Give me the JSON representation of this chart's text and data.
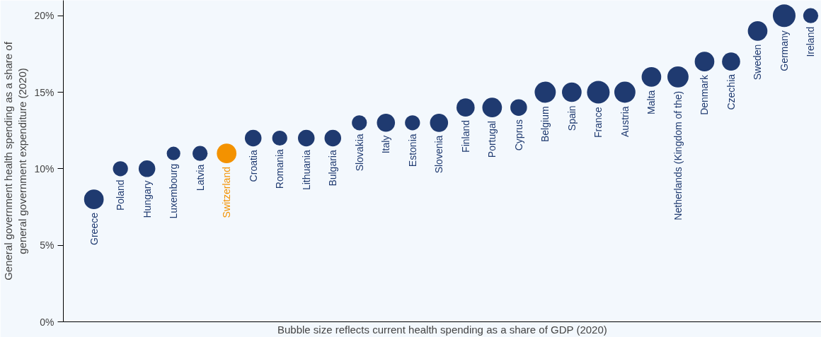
{
  "chart_data": {
    "type": "bubble",
    "xlabel": "Bubble size reflects current health spending as a share of GDP (2020)",
    "ylabel": "General government health spending as a share of\ngeneral government expenditure (2020)",
    "categories": [
      "Greece",
      "Poland",
      "Hungary",
      "Luxembourg",
      "Latvia",
      "Switzerland",
      "Croatia",
      "Romania",
      "Lithuania",
      "Bulgaria",
      "Slovakia",
      "Italy",
      "Estonia",
      "Slovenia",
      "Finland",
      "Portugal",
      "Cyprus",
      "Belgium",
      "Spain",
      "France",
      "Austria",
      "Malta",
      "Netherlands (Kingdom of the)",
      "Denmark",
      "Czechia",
      "Sweden",
      "Germany",
      "Ireland"
    ],
    "values": [
      8,
      10,
      10,
      11,
      11,
      11,
      12,
      12,
      12,
      12,
      13,
      13,
      13,
      13,
      14,
      14,
      14,
      15,
      15,
      15,
      15,
      16,
      16,
      17,
      17,
      19,
      20,
      20
    ],
    "sizes": [
      0.75,
      0.44,
      0.54,
      0.36,
      0.44,
      0.75,
      0.54,
      0.44,
      0.54,
      0.54,
      0.44,
      0.64,
      0.44,
      0.64,
      0.64,
      0.75,
      0.54,
      0.87,
      0.75,
      1,
      0.87,
      0.75,
      0.87,
      0.75,
      0.64,
      0.75,
      1,
      0.44
    ],
    "colors": [
      "#1f3a70",
      "#1f3a70",
      "#1f3a70",
      "#1f3a70",
      "#1f3a70",
      "#f39200",
      "#1f3a70",
      "#1f3a70",
      "#1f3a70",
      "#1f3a70",
      "#1f3a70",
      "#1f3a70",
      "#1f3a70",
      "#1f3a70",
      "#1f3a70",
      "#1f3a70",
      "#1f3a70",
      "#1f3a70",
      "#1f3a70",
      "#1f3a70",
      "#1f3a70",
      "#1f3a70",
      "#1f3a70",
      "#1f3a70",
      "#1f3a70",
      "#1f3a70",
      "#1f3a70",
      "#1f3a70"
    ],
    "ylim": [
      0,
      21
    ],
    "yticks": [
      {
        "value": 0,
        "label": "0%"
      },
      {
        "value": 5,
        "label": "5%"
      },
      {
        "value": 10,
        "label": "10%"
      },
      {
        "value": 15,
        "label": "15%"
      },
      {
        "value": 20,
        "label": "20%"
      }
    ]
  }
}
